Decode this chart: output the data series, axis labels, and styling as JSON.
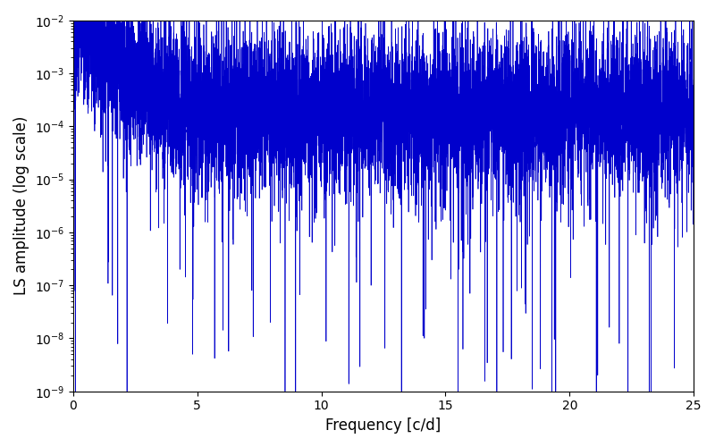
{
  "line_color": "#0000cc",
  "xlabel": "Frequency [c/d]",
  "ylabel": "LS amplitude (log scale)",
  "xlim": [
    0,
    25
  ],
  "ylim_log": [
    -9,
    -2
  ],
  "line_width": 0.5,
  "background_color": "#ffffff",
  "figsize": [
    8.0,
    5.0
  ],
  "dpi": 100,
  "n_points": 8000,
  "seed": 7
}
